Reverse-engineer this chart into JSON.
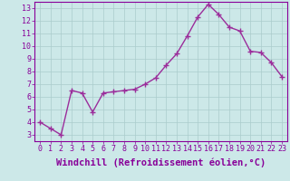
{
  "x": [
    0,
    1,
    2,
    3,
    4,
    5,
    6,
    7,
    8,
    9,
    10,
    11,
    12,
    13,
    14,
    15,
    16,
    17,
    18,
    19,
    20,
    21,
    22,
    23
  ],
  "y": [
    4.0,
    3.5,
    3.0,
    6.5,
    6.3,
    4.8,
    6.3,
    6.4,
    6.5,
    6.6,
    7.0,
    7.5,
    8.5,
    9.4,
    10.8,
    12.3,
    13.3,
    12.5,
    11.5,
    11.2,
    9.6,
    9.5,
    8.7,
    7.6
  ],
  "line_color": "#9b2d9b",
  "marker": "+",
  "marker_size": 4,
  "marker_linewidth": 1.0,
  "background_color": "#cce8e8",
  "grid_color": "#aacccc",
  "xlabel": "Windchill (Refroidissement éolien,°C)",
  "xlabel_fontsize": 7.5,
  "xlim": [
    -0.5,
    23.5
  ],
  "ylim": [
    2.5,
    13.5
  ],
  "yticks": [
    3,
    4,
    5,
    6,
    7,
    8,
    9,
    10,
    11,
    12,
    13
  ],
  "xticks": [
    0,
    1,
    2,
    3,
    4,
    5,
    6,
    7,
    8,
    9,
    10,
    11,
    12,
    13,
    14,
    15,
    16,
    17,
    18,
    19,
    20,
    21,
    22,
    23
  ],
  "tick_fontsize": 6.0,
  "tick_color": "#880099",
  "spine_color": "#880099",
  "line_width": 1.0
}
